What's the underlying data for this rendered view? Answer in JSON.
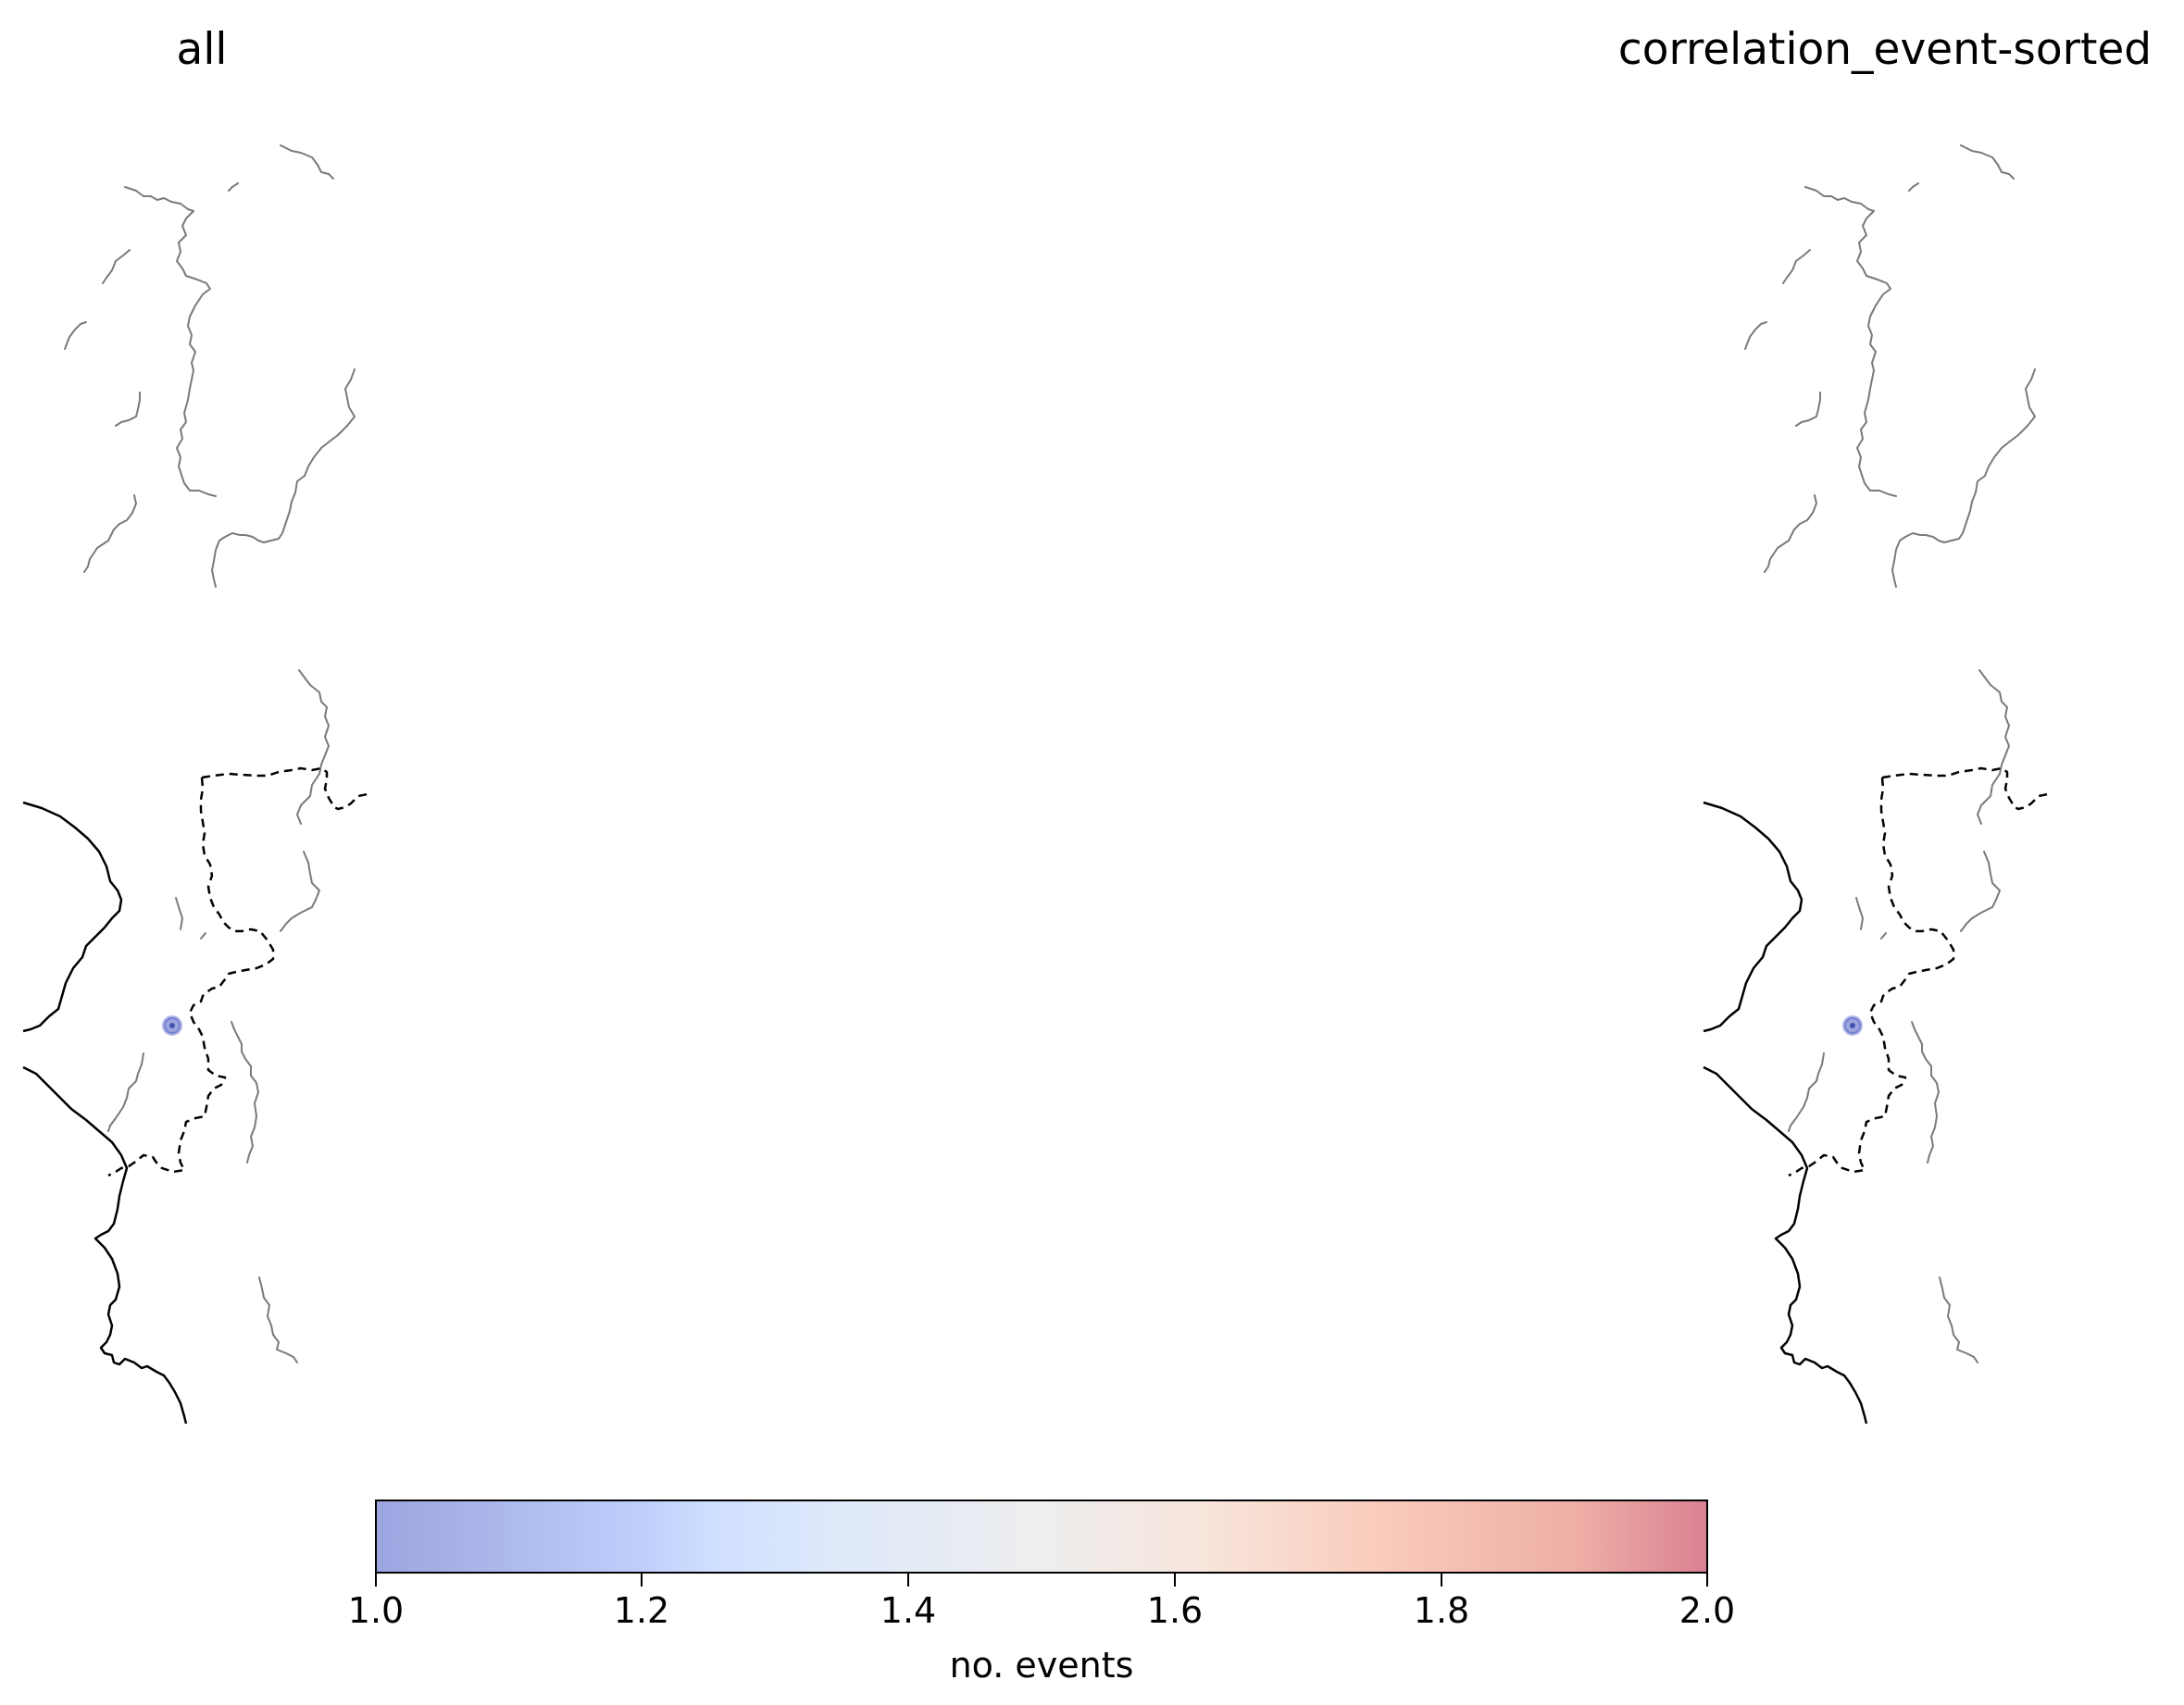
{
  "panels": [
    {
      "title": "all"
    },
    {
      "title": "correlation_event-sorted"
    }
  ],
  "marker": {
    "value": 1.0,
    "color": "#7f8ed8"
  },
  "colorbar": {
    "label": "no. events",
    "min": 1.0,
    "max": 2.0,
    "cmap": "coolwarm",
    "alpha": 0.5,
    "ticks": [
      "1.0",
      "1.2",
      "1.4",
      "1.6",
      "1.8",
      "2.0"
    ],
    "tick_values": [
      1.0,
      1.2,
      1.4,
      1.6,
      1.8,
      2.0
    ]
  },
  "colors": {
    "rivers": "#7a7a7a",
    "coastline": "#000000",
    "borders": "#000000"
  }
}
